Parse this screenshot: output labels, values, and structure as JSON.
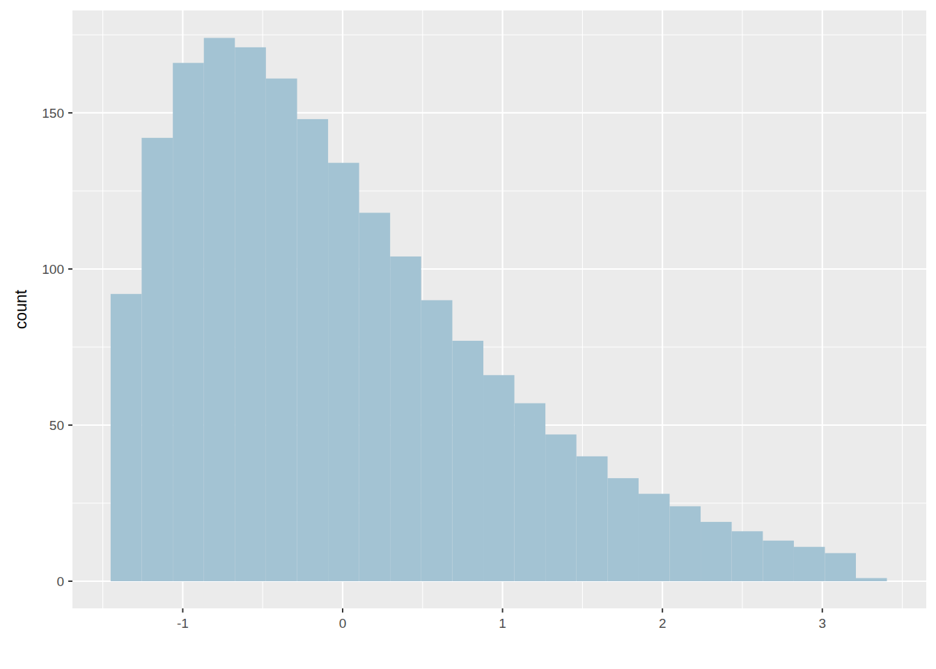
{
  "chart_data": {
    "type": "histogram",
    "y_label": "count",
    "bins": [
      -1.451,
      -1.257,
      -1.062,
      -0.868,
      -0.674,
      -0.48,
      -0.285,
      -0.091,
      0.103,
      0.297,
      0.491,
      0.686,
      0.88,
      1.074,
      1.268,
      1.462,
      1.657,
      1.851,
      2.045,
      2.239,
      2.433,
      2.628,
      2.822,
      3.016,
      3.21,
      3.404
    ],
    "values": [
      92,
      142,
      166,
      174,
      171,
      161,
      148,
      134,
      118,
      104,
      90,
      77,
      66,
      57,
      47,
      40,
      33,
      28,
      24,
      19,
      16,
      13,
      11,
      9,
      1
    ],
    "color": "#a3c3d3",
    "xlim": [
      -1.69,
      3.65
    ],
    "ylim": [
      -8.7,
      182.8
    ],
    "xticks": [
      -1,
      0,
      1,
      2,
      3
    ],
    "yticks": [
      0,
      50,
      100,
      150
    ],
    "grid": true
  }
}
